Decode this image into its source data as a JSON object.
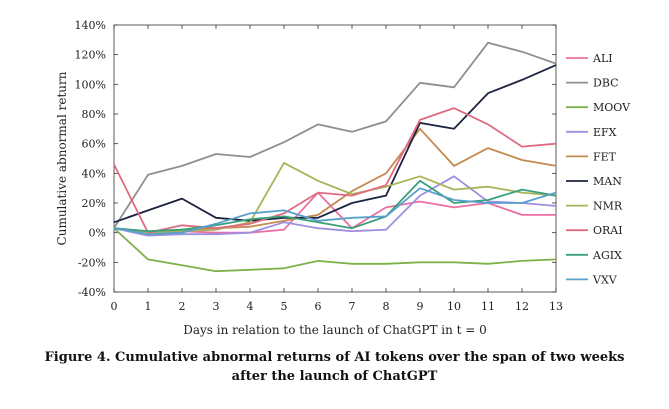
{
  "chart_data": {
    "type": "line",
    "xlabel": "Days in relation to the launch of ChatGPT in t = 0",
    "ylabel": "Cumulative abnormal return",
    "x": [
      0,
      1,
      2,
      3,
      4,
      5,
      6,
      7,
      8,
      9,
      10,
      11,
      12,
      13
    ],
    "xlim": [
      0,
      13
    ],
    "ylim": [
      -40,
      140
    ],
    "y_ticks": [
      "-40%",
      "-20%",
      "0%",
      "20%",
      "40%",
      "60%",
      "80%",
      "100%",
      "120%",
      "140%"
    ],
    "y_tick_values": [
      -40,
      -20,
      0,
      20,
      40,
      60,
      80,
      100,
      120,
      140
    ],
    "x_ticks": [
      "0",
      "1",
      "2",
      "3",
      "4",
      "5",
      "6",
      "7",
      "8",
      "9",
      "10",
      "11",
      "12",
      "13"
    ],
    "grid": false,
    "legend_position": "right",
    "series": [
      {
        "name": "ALI",
        "color": "#ec6fa4",
        "values": [
          3,
          -1,
          1,
          0,
          0,
          2,
          27,
          3,
          17,
          21,
          17,
          20,
          12,
          12
        ]
      },
      {
        "name": "DBC",
        "color": "#8f8f8f",
        "values": [
          3,
          39,
          45,
          53,
          51,
          61,
          73,
          68,
          75,
          101,
          98,
          128,
          122,
          114
        ]
      },
      {
        "name": "MOOV",
        "color": "#7db24b",
        "values": [
          3,
          -18,
          -22,
          -26,
          -25,
          -24,
          -19,
          -21,
          -21,
          -20,
          -20,
          -21,
          -19,
          -18
        ]
      },
      {
        "name": "EFX",
        "color": "#9e8fe0",
        "values": [
          3,
          -2,
          -1,
          -1,
          0,
          7,
          3,
          1,
          2,
          25,
          38,
          21,
          20,
          18
        ]
      },
      {
        "name": "FET",
        "color": "#c48a4d",
        "values": [
          3,
          0,
          2,
          3,
          4,
          8,
          12,
          28,
          40,
          70,
          45,
          57,
          49,
          45
        ]
      },
      {
        "name": "MAN",
        "color": "#1c2440",
        "values": [
          7,
          15,
          23,
          10,
          8,
          10,
          10,
          20,
          25,
          74,
          70,
          94,
          103,
          113
        ]
      },
      {
        "name": "NMR",
        "color": "#a9b35a",
        "values": [
          3,
          0,
          1,
          2,
          7,
          47,
          35,
          26,
          31,
          38,
          29,
          31,
          27,
          25
        ]
      },
      {
        "name": "ORAI",
        "color": "#e06b80",
        "values": [
          46,
          0,
          5,
          3,
          6,
          13,
          27,
          25,
          32,
          76,
          84,
          73,
          58,
          60
        ]
      },
      {
        "name": "AGIX",
        "color": "#3a9f7b",
        "values": [
          3,
          1,
          2,
          5,
          9,
          11,
          7,
          3,
          11,
          35,
          20,
          22,
          29,
          25
        ]
      },
      {
        "name": "VXV",
        "color": "#5aa0cc",
        "values": [
          3,
          -1,
          0,
          6,
          13,
          15,
          8,
          10,
          11,
          30,
          22,
          20,
          20,
          27
        ]
      }
    ]
  },
  "caption": {
    "line1": "Figure 4. Cumulative abnormal returns of AI tokens over the span of two weeks",
    "line2": "after the launch of ChatGPT"
  }
}
